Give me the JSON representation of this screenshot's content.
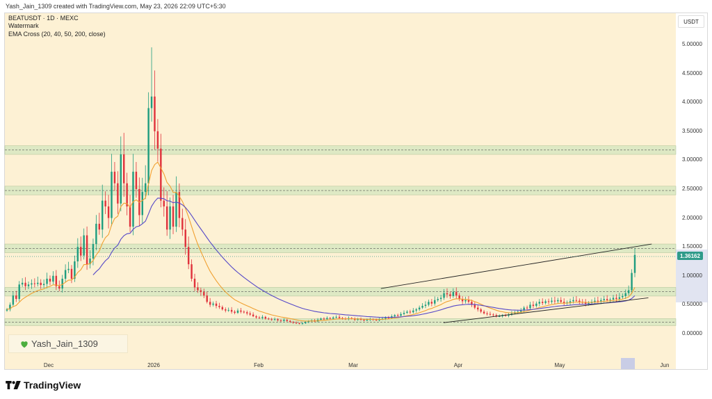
{
  "header": {
    "text": "Yash_Jain_1309 created with TradingView.com, May 23, 2026 22:09 UTC+5:30"
  },
  "legend": {
    "symbol": "BEATUSDT · 1D · MEXC",
    "line2": "Watermark",
    "line3": "EMA Cross (20, 40, 50, 200, close)"
  },
  "currency_button": "USDT",
  "watermark_text": "Yash_Jain_1309",
  "current_price_label": "1.36162",
  "footer_logo_text": "TradingView",
  "colors": {
    "background": "#fdf1d4",
    "up": "#1f9d7f",
    "down": "#e0323c",
    "ema_fast": "#f0a030",
    "ema_slow": "#5548c8",
    "zone_fill": "#d9e8c2",
    "price_tag": "#2f9b8a"
  },
  "chart_data": {
    "type": "candlestick",
    "y_axis": {
      "ticks": [
        "5.00000",
        "4.50000",
        "4.00000",
        "3.50000",
        "3.00000",
        "2.50000",
        "2.00000",
        "1.50000",
        "1.00000",
        "0.50000",
        "0.00000"
      ],
      "range": [
        -0.2,
        5.3
      ]
    },
    "x_axis": {
      "ticks": [
        "Dec",
        "2026",
        "Feb",
        "Mar",
        "Apr",
        "May",
        "Jun"
      ]
    },
    "zones": [
      {
        "low": 3.1,
        "high": 3.25
      },
      {
        "low": 2.4,
        "high": 2.55
      },
      {
        "low": 1.4,
        "high": 1.55
      },
      {
        "low": 0.65,
        "high": 0.8
      },
      {
        "low": 0.14,
        "high": 0.26
      }
    ],
    "trendlines": [
      {
        "from": [
          "2026-03-10",
          0.78
        ],
        "to": [
          "2026-05-31",
          1.55
        ]
      },
      {
        "from": [
          "2026-03-29",
          0.19
        ],
        "to": [
          "2026-05-30",
          0.62
        ]
      }
    ],
    "candles_close": [
      0.42,
      0.5,
      0.66,
      0.6,
      0.85,
      0.88,
      0.82,
      0.85,
      0.87,
      0.86,
      0.88,
      0.84,
      0.86,
      0.95,
      0.9,
      1.0,
      0.82,
      0.78,
      0.95,
      1.1,
      1.12,
      0.95,
      1.25,
      1.5,
      1.35,
      1.7,
      1.2,
      1.3,
      1.55,
      1.9,
      1.8,
      2.3,
      2.2,
      2.0,
      2.8,
      2.6,
      2.25,
      3.1,
      2.6,
      2.2,
      1.85,
      2.8,
      2.5,
      2.05,
      2.45,
      2.6,
      3.9,
      4.1,
      3.5,
      3.2,
      2.3,
      2.2,
      1.8,
      2.2,
      1.85,
      2.45,
      2.0,
      1.8,
      1.5,
      1.2,
      0.95,
      0.8,
      0.75,
      0.72,
      0.66,
      0.55,
      0.5,
      0.52,
      0.48,
      0.46,
      0.42,
      0.4,
      0.41,
      0.38,
      0.36,
      0.4,
      0.38,
      0.37,
      0.35,
      0.33,
      0.3,
      0.28,
      0.27,
      0.29,
      0.26,
      0.25,
      0.24,
      0.25,
      0.23,
      0.22,
      0.24,
      0.22,
      0.2,
      0.19,
      0.18,
      0.17,
      0.18,
      0.2,
      0.22,
      0.23,
      0.21,
      0.24,
      0.26,
      0.25,
      0.27,
      0.26,
      0.28,
      0.29,
      0.27,
      0.26,
      0.25,
      0.27,
      0.26,
      0.24,
      0.25,
      0.24,
      0.23,
      0.24,
      0.25,
      0.24,
      0.23,
      0.25,
      0.26,
      0.28,
      0.27,
      0.3,
      0.32,
      0.31,
      0.34,
      0.36,
      0.38,
      0.37,
      0.4,
      0.42,
      0.45,
      0.48,
      0.5,
      0.55,
      0.52,
      0.58,
      0.6,
      0.62,
      0.7,
      0.68,
      0.65,
      0.72,
      0.66,
      0.6,
      0.56,
      0.58,
      0.55,
      0.5,
      0.45,
      0.42,
      0.38,
      0.35,
      0.34,
      0.33,
      0.32,
      0.3,
      0.3,
      0.32,
      0.31,
      0.33,
      0.35,
      0.37,
      0.38,
      0.4,
      0.45,
      0.44,
      0.5,
      0.48,
      0.52,
      0.55,
      0.53,
      0.56,
      0.55,
      0.57,
      0.56,
      0.58,
      0.55,
      0.53,
      0.54,
      0.56,
      0.58,
      0.57,
      0.55,
      0.54,
      0.52,
      0.53,
      0.55,
      0.57,
      0.56,
      0.58,
      0.6,
      0.58,
      0.59,
      0.62,
      0.6,
      0.63,
      0.65,
      0.7,
      0.75,
      1.05,
      1.36162
    ]
  }
}
